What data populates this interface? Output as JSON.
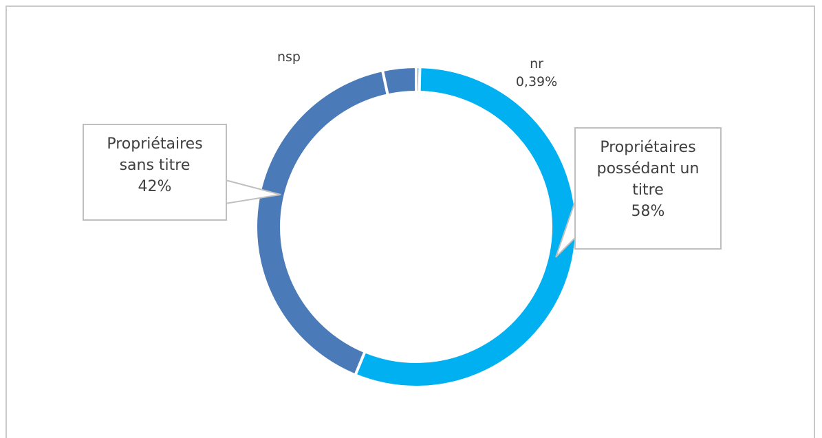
{
  "chart_data": {
    "type": "donut",
    "categories": [
      "nr",
      "Propriétaires possédant un titre",
      "Propriétaires sans titre",
      "nsp"
    ],
    "values": [
      0.39,
      58,
      42,
      3.5
    ],
    "value_labels": [
      "0,39%",
      "58%",
      "42%",
      null
    ],
    "colors": [
      "#00b0f0",
      "#00b0f0",
      "#4a7ab7",
      "#4a7ab7"
    ]
  }
}
